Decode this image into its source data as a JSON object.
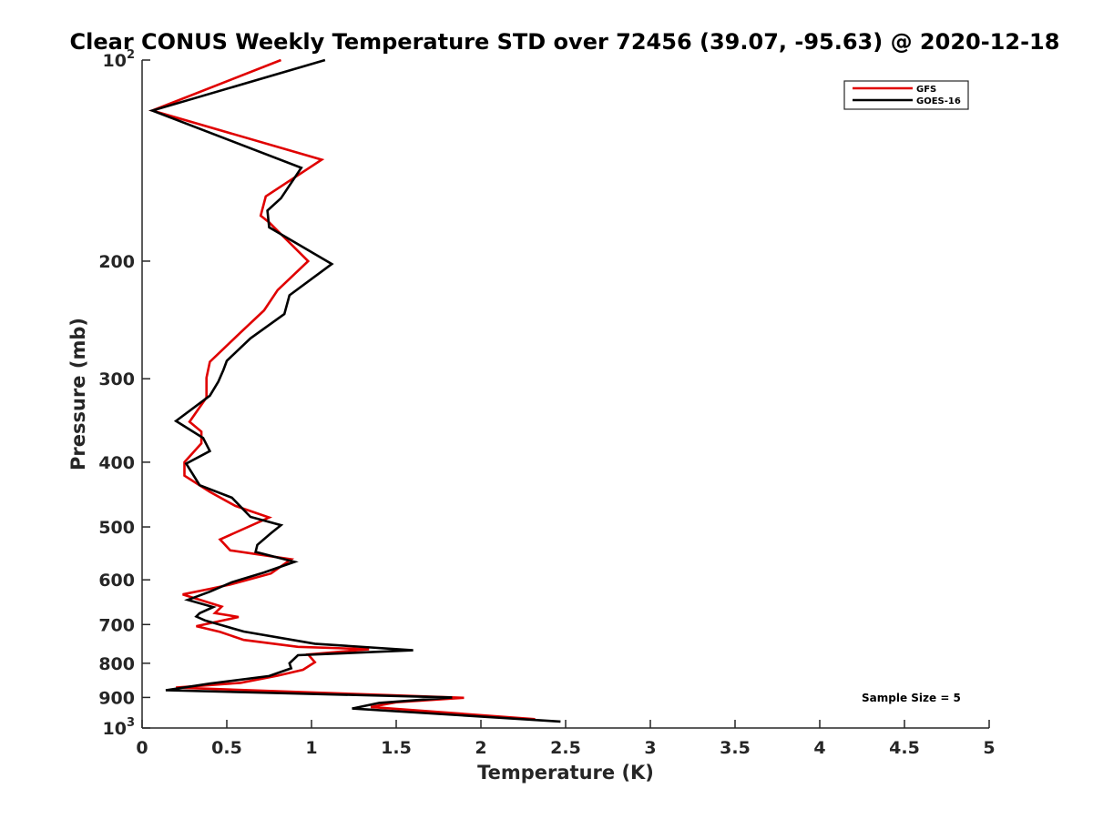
{
  "chart_data": {
    "type": "line",
    "title": "Clear CONUS Weekly Temperature STD over 72456 (39.07, -95.63) @ 2020-12-18",
    "xlabel": "Temperature (K)",
    "ylabel": "Pressure (mb)",
    "xlim": [
      0,
      5
    ],
    "ylim": [
      100,
      1000
    ],
    "yscale": "log",
    "yreversed": true,
    "grid": false,
    "xticks": [
      0,
      0.5,
      1,
      1.5,
      2,
      2.5,
      3,
      3.5,
      4,
      4.5,
      5
    ],
    "xtick_labels": [
      "0",
      "0.5",
      "1",
      "1.5",
      "2",
      "2.5",
      "3",
      "3.5",
      "4",
      "4.5",
      "5"
    ],
    "yticks": [
      {
        "value": 100,
        "base": "10",
        "exp": "2",
        "label": ""
      },
      {
        "value": 200,
        "label": "200"
      },
      {
        "value": 300,
        "label": "300"
      },
      {
        "value": 400,
        "label": "400"
      },
      {
        "value": 500,
        "label": "500"
      },
      {
        "value": 600,
        "label": "600"
      },
      {
        "value": 700,
        "label": "700"
      },
      {
        "value": 800,
        "label": "800"
      },
      {
        "value": 900,
        "label": "900"
      },
      {
        "value": 1000,
        "base": "10",
        "exp": "3",
        "label": ""
      }
    ],
    "legend_position": "top-right",
    "annotation": "Sample Size = 5",
    "series": [
      {
        "name": "GFS",
        "color": "#e00000",
        "points": [
          [
            0.82,
            100
          ],
          [
            0.06,
            119
          ],
          [
            1.06,
            141
          ],
          [
            0.73,
            160
          ],
          [
            0.7,
            171
          ],
          [
            0.75,
            175
          ],
          [
            0.98,
            200
          ],
          [
            0.8,
            221
          ],
          [
            0.72,
            237
          ],
          [
            0.58,
            256
          ],
          [
            0.4,
            283
          ],
          [
            0.38,
            299
          ],
          [
            0.38,
            320
          ],
          [
            0.28,
            348
          ],
          [
            0.35,
            360
          ],
          [
            0.35,
            375
          ],
          [
            0.25,
            400
          ],
          [
            0.25,
            419
          ],
          [
            0.4,
            443
          ],
          [
            0.55,
            465
          ],
          [
            0.75,
            484
          ],
          [
            0.46,
            522
          ],
          [
            0.52,
            542
          ],
          [
            0.88,
            559
          ],
          [
            0.76,
            587
          ],
          [
            0.52,
            610
          ],
          [
            0.4,
            619
          ],
          [
            0.24,
            631
          ],
          [
            0.47,
            658
          ],
          [
            0.43,
            673
          ],
          [
            0.57,
            682
          ],
          [
            0.32,
            704
          ],
          [
            0.46,
            718
          ],
          [
            0.6,
            738
          ],
          [
            0.92,
            756
          ],
          [
            1.34,
            762
          ],
          [
            0.98,
            776
          ],
          [
            1.02,
            797
          ],
          [
            0.95,
            818
          ],
          [
            0.8,
            835
          ],
          [
            0.58,
            856
          ],
          [
            0.2,
            870
          ],
          [
            1.9,
            901
          ],
          [
            1.5,
            915
          ],
          [
            1.35,
            930
          ],
          [
            2.32,
            970
          ]
        ]
      },
      {
        "name": "GOES-16",
        "color": "#000000",
        "points": [
          [
            1.08,
            100
          ],
          [
            0.06,
            119
          ],
          [
            0.94,
            145
          ],
          [
            0.82,
            161
          ],
          [
            0.74,
            168
          ],
          [
            0.75,
            178
          ],
          [
            1.12,
            202
          ],
          [
            0.87,
            225
          ],
          [
            0.84,
            240
          ],
          [
            0.64,
            261
          ],
          [
            0.5,
            282
          ],
          [
            0.48,
            291
          ],
          [
            0.45,
            303
          ],
          [
            0.4,
            318
          ],
          [
            0.2,
            347
          ],
          [
            0.36,
            368
          ],
          [
            0.4,
            385
          ],
          [
            0.26,
            402
          ],
          [
            0.34,
            433
          ],
          [
            0.53,
            452
          ],
          [
            0.64,
            483
          ],
          [
            0.82,
            497
          ],
          [
            0.76,
            511
          ],
          [
            0.68,
            532
          ],
          [
            0.67,
            545
          ],
          [
            0.9,
            564
          ],
          [
            0.72,
            585
          ],
          [
            0.53,
            605
          ],
          [
            0.4,
            625
          ],
          [
            0.27,
            643
          ],
          [
            0.42,
            659
          ],
          [
            0.34,
            673
          ],
          [
            0.32,
            681
          ],
          [
            0.37,
            690
          ],
          [
            0.6,
            717
          ],
          [
            1.02,
            748
          ],
          [
            1.6,
            765
          ],
          [
            0.92,
            778
          ],
          [
            0.87,
            800
          ],
          [
            0.88,
            814
          ],
          [
            0.75,
            836
          ],
          [
            0.4,
            858
          ],
          [
            0.14,
            878
          ],
          [
            1.83,
            900
          ],
          [
            1.4,
            917
          ],
          [
            1.24,
            935
          ],
          [
            2.47,
            978
          ]
        ]
      }
    ]
  }
}
